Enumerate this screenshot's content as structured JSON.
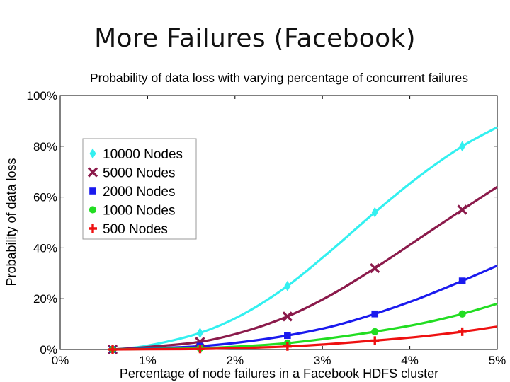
{
  "slide": {
    "title": "More Failures (Facebook)"
  },
  "chart_data": {
    "type": "line",
    "title": "Probability of data loss with varying percentage of concurrent failures",
    "xlabel": "Percentage of node failures in a Facebook HDFS cluster",
    "ylabel": "Probability of data loss",
    "xlim": [
      0,
      5
    ],
    "ylim": [
      0,
      100
    ],
    "x_ticks": [
      "0%",
      "1%",
      "2%",
      "3%",
      "4%",
      "5%"
    ],
    "y_ticks": [
      "0%",
      "20%",
      "40%",
      "60%",
      "80%",
      "100%"
    ],
    "grid": false,
    "legend_position": "top-left",
    "x": [
      0.6,
      1.6,
      2.6,
      3.6,
      4.6
    ],
    "series": [
      {
        "name": "10000 Nodes",
        "marker": "diamond",
        "color": "#33f0f0",
        "values": [
          0,
          6.5,
          25,
          54,
          80
        ],
        "curve": [
          [
            0.6,
            0
          ],
          [
            1.0,
            1.5
          ],
          [
            1.6,
            6.5
          ],
          [
            2.1,
            14
          ],
          [
            2.6,
            25
          ],
          [
            3.1,
            39
          ],
          [
            3.6,
            54
          ],
          [
            4.1,
            68
          ],
          [
            4.6,
            80
          ],
          [
            5.0,
            87.5
          ]
        ]
      },
      {
        "name": "5000 Nodes",
        "marker": "x",
        "color": "#8b1a4b",
        "values": [
          0,
          3,
          13,
          32,
          55
        ],
        "curve": [
          [
            0.6,
            0
          ],
          [
            1.0,
            1
          ],
          [
            1.6,
            3
          ],
          [
            2.1,
            7
          ],
          [
            2.6,
            13
          ],
          [
            3.1,
            21.5
          ],
          [
            3.6,
            32
          ],
          [
            4.1,
            43.5
          ],
          [
            4.6,
            55
          ],
          [
            5.0,
            64
          ]
        ]
      },
      {
        "name": "2000 Nodes",
        "marker": "square",
        "color": "#1a1aee",
        "values": [
          0,
          1.3,
          5.5,
          14,
          27
        ],
        "curve": [
          [
            0.6,
            0
          ],
          [
            1.0,
            0.4
          ],
          [
            1.6,
            1.3
          ],
          [
            2.1,
            3
          ],
          [
            2.6,
            5.5
          ],
          [
            3.1,
            9
          ],
          [
            3.6,
            14
          ],
          [
            4.1,
            20
          ],
          [
            4.6,
            27
          ],
          [
            5.0,
            33
          ]
        ]
      },
      {
        "name": "1000 Nodes",
        "marker": "circle",
        "color": "#22dd22",
        "values": [
          0,
          0.5,
          2.5,
          7,
          14
        ],
        "curve": [
          [
            0.6,
            0
          ],
          [
            1.0,
            0.2
          ],
          [
            1.6,
            0.5
          ],
          [
            2.1,
            1.3
          ],
          [
            2.6,
            2.5
          ],
          [
            3.1,
            4.5
          ],
          [
            3.6,
            7
          ],
          [
            4.1,
            10
          ],
          [
            4.6,
            14
          ],
          [
            5.0,
            18
          ]
        ]
      },
      {
        "name": "500 Nodes",
        "marker": "plus",
        "color": "#ee1111",
        "values": [
          0,
          0.2,
          1.2,
          3.5,
          7
        ],
        "curve": [
          [
            0.6,
            0
          ],
          [
            1.0,
            0.1
          ],
          [
            1.6,
            0.2
          ],
          [
            2.1,
            0.6
          ],
          [
            2.6,
            1.2
          ],
          [
            3.1,
            2.2
          ],
          [
            3.6,
            3.5
          ],
          [
            4.1,
            5
          ],
          [
            4.6,
            7
          ],
          [
            5.0,
            9
          ]
        ]
      }
    ]
  }
}
